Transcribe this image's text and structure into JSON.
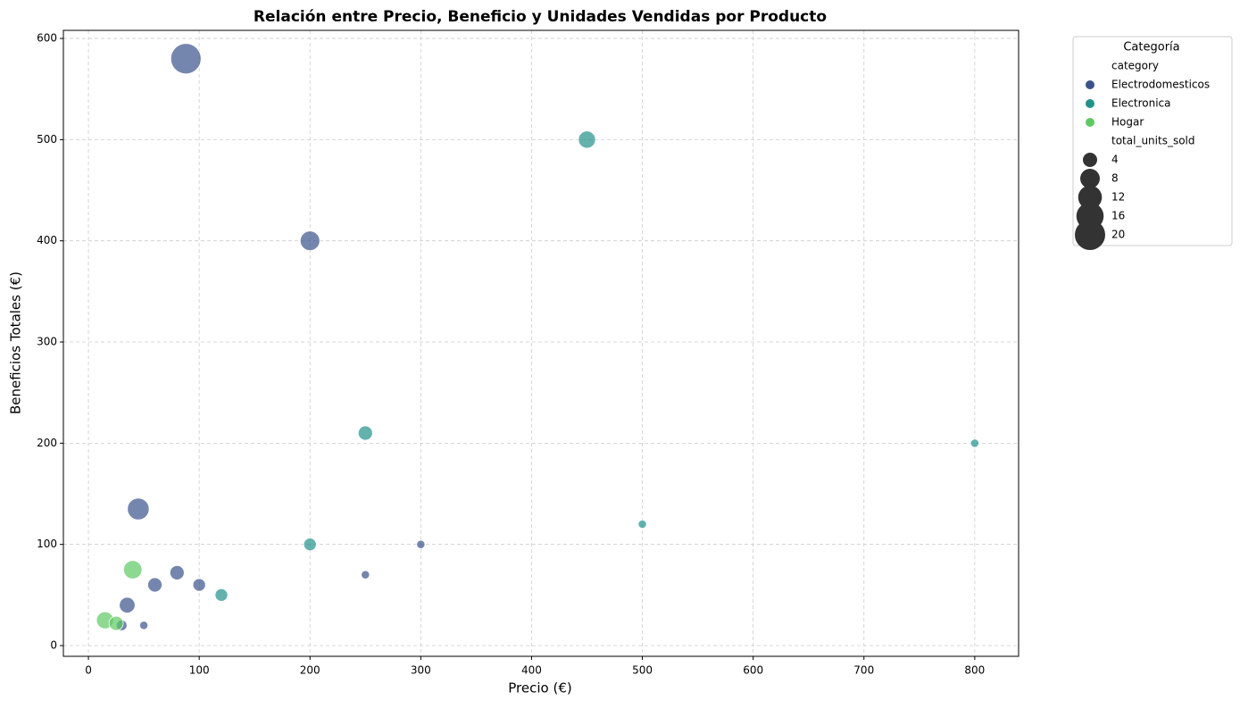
{
  "chart_data": {
    "type": "scatter",
    "title": "Relación entre Precio, Beneficio y Unidades Vendidas por Producto",
    "x_label": "Precio (€)",
    "y_label": "Beneficios Totales (€)",
    "xlim": [
      -22.6,
      839.6
    ],
    "ylim": [
      -10.6,
      608
    ],
    "xticks": [
      0,
      100,
      200,
      300,
      400,
      500,
      600,
      700,
      800
    ],
    "yticks": [
      0,
      100,
      200,
      300,
      400,
      500,
      600
    ],
    "grid": true,
    "legend": {
      "title": "Categoría",
      "hue_title": "category",
      "size_title": "total_units_sold",
      "size_values": [
        4,
        8,
        12,
        16,
        20
      ],
      "position": "outside-upper-right"
    },
    "series": [
      {
        "name": "Electrodomesticos",
        "color": "#3b528b",
        "x": [
          88,
          200,
          45,
          80,
          60,
          100,
          35,
          30,
          50,
          250,
          300
        ],
        "values": [
          580,
          400,
          135,
          72,
          60,
          60,
          40,
          20,
          20,
          70,
          100
        ],
        "sizes": [
          20,
          8,
          10,
          4,
          4,
          3,
          5,
          2,
          1,
          1,
          1
        ]
      },
      {
        "name": "Electronica",
        "color": "#21918c",
        "x": [
          450,
          250,
          200,
          120,
          500,
          800
        ],
        "values": [
          500,
          210,
          100,
          50,
          120,
          200
        ],
        "sizes": [
          6,
          4,
          3,
          3,
          1,
          1
        ]
      },
      {
        "name": "Hogar",
        "color": "#5ec962",
        "x": [
          40,
          15,
          25
        ],
        "values": [
          75,
          25,
          22
        ],
        "sizes": [
          7,
          6,
          4
        ]
      }
    ]
  }
}
